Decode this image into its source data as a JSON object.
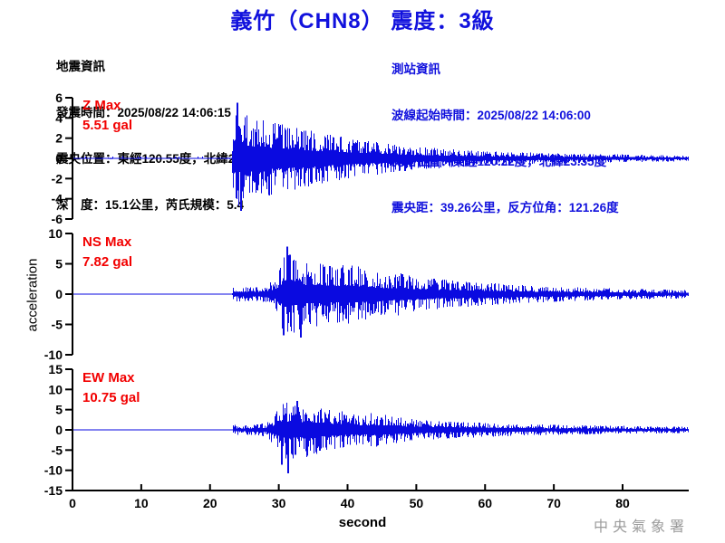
{
  "title": "義竹（CHN8） 震度：3級",
  "info_left": {
    "lines": [
      "地震資訊",
      "發震時間：2025/08/22 14:06:15",
      "震央位置：東經120.55度，北緯23.16度",
      "深　度：15.1公里，芮氏規模：5.4"
    ]
  },
  "info_right": {
    "lines": [
      "測站資訊",
      "波線起始時間：2025/08/22 14:06:00",
      "測站位置：東經120.22度，北緯23.35度",
      "震央距：39.26公里，反方位角：121.26度"
    ]
  },
  "footer": {
    "agency": "中央氣象署"
  },
  "colors": {
    "waveform": "#0a0ae0",
    "title_blue": "#1111dd",
    "label_red": "#f20000",
    "axis": "#000000",
    "watermark": "#9b9b9b"
  },
  "chart_data": {
    "type": "line",
    "title": "義竹（CHN8） 震度：3級",
    "xlabel": "second",
    "ylabel": "acceleration",
    "x_ticks": [
      0,
      10,
      20,
      30,
      40,
      50,
      60,
      70,
      80
    ],
    "x_range_s": [
      0,
      89.5
    ],
    "arrival_s": 23.1,
    "grid": false,
    "traces": [
      {
        "id": "Z",
        "label": "Z Max",
        "max_text": "5.51 gal",
        "max_gal": 5.51,
        "ylim": 6,
        "y_ticks": [
          6,
          4,
          2,
          0,
          -2,
          -4,
          -6
        ],
        "peaks": [
          {
            "t": 23.9,
            "gal": 5.51
          },
          {
            "t": 24.4,
            "gal": -5.2
          }
        ],
        "envelope": [
          [
            0,
            0.07
          ],
          [
            23.1,
            0.07
          ],
          [
            23.35,
            5.0
          ],
          [
            25,
            4.6
          ],
          [
            27,
            4.0
          ],
          [
            30,
            3.5
          ],
          [
            33,
            3.0
          ],
          [
            36,
            2.55
          ],
          [
            40,
            2.05
          ],
          [
            44,
            1.65
          ],
          [
            48,
            1.3
          ],
          [
            52,
            1.05
          ],
          [
            56,
            0.85
          ],
          [
            60,
            0.7
          ],
          [
            65,
            0.6
          ],
          [
            70,
            0.5
          ],
          [
            75,
            0.45
          ],
          [
            80,
            0.4
          ],
          [
            85,
            0.33
          ],
          [
            89.5,
            0.28
          ]
        ]
      },
      {
        "id": "NS",
        "label": "NS Max",
        "max_text": "7.82 gal",
        "max_gal": 7.82,
        "ylim": 10,
        "y_ticks": [
          10,
          5,
          0,
          -5,
          -10
        ],
        "peaks": [
          {
            "t": 31.2,
            "gal": 7.82
          },
          {
            "t": 30.7,
            "gal": -6.8
          },
          {
            "t": 33.2,
            "gal": -7.2
          }
        ],
        "envelope": [
          [
            0,
            0.04
          ],
          [
            23.1,
            0.04
          ],
          [
            23.35,
            1.25
          ],
          [
            26,
            1.15
          ],
          [
            28,
            1.35
          ],
          [
            29.5,
            2.6
          ],
          [
            30.6,
            6.2
          ],
          [
            31.3,
            7.0
          ],
          [
            32.5,
            6.2
          ],
          [
            34,
            5.2
          ],
          [
            36,
            5.4
          ],
          [
            38,
            4.6
          ],
          [
            39.5,
            5.0
          ],
          [
            41.5,
            4.6
          ],
          [
            43.5,
            3.9
          ],
          [
            45.5,
            3.3
          ],
          [
            47.5,
            3.5
          ],
          [
            50,
            2.9
          ],
          [
            53,
            2.5
          ],
          [
            56,
            2.2
          ],
          [
            60,
            1.9
          ],
          [
            64,
            1.6
          ],
          [
            68,
            1.4
          ],
          [
            72,
            1.2
          ],
          [
            76,
            1.0
          ],
          [
            80,
            0.9
          ],
          [
            85,
            0.8
          ],
          [
            89.5,
            0.7
          ]
        ]
      },
      {
        "id": "EW",
        "label": "EW Max",
        "max_text": "10.75 gal",
        "max_gal": 10.75,
        "ylim": 15,
        "y_ticks": [
          15,
          10,
          5,
          0,
          -5,
          -10,
          -15
        ],
        "peaks": [
          {
            "t": 31.3,
            "gal": -10.75
          },
          {
            "t": 30.4,
            "gal": -8.6
          },
          {
            "t": 32.6,
            "gal": 7.2
          }
        ],
        "envelope": [
          [
            0,
            0.04
          ],
          [
            23.1,
            0.04
          ],
          [
            23.35,
            1.35
          ],
          [
            26,
            1.25
          ],
          [
            28,
            1.6
          ],
          [
            29.5,
            4.2
          ],
          [
            30.6,
            6.8
          ],
          [
            31.5,
            7.4
          ],
          [
            33,
            6.4
          ],
          [
            34.5,
            7.0
          ],
          [
            36,
            5.6
          ],
          [
            38,
            5.0
          ],
          [
            40,
            4.3
          ],
          [
            42,
            3.8
          ],
          [
            44,
            4.3
          ],
          [
            46,
            3.7
          ],
          [
            48,
            3.0
          ],
          [
            50,
            2.6
          ],
          [
            53,
            2.3
          ],
          [
            56,
            2.1
          ],
          [
            60,
            1.8
          ],
          [
            64,
            1.5
          ],
          [
            68,
            1.35
          ],
          [
            72,
            1.2
          ],
          [
            76,
            1.1
          ],
          [
            80,
            1.0
          ],
          [
            85,
            0.85
          ],
          [
            89.5,
            0.75
          ]
        ]
      }
    ]
  }
}
